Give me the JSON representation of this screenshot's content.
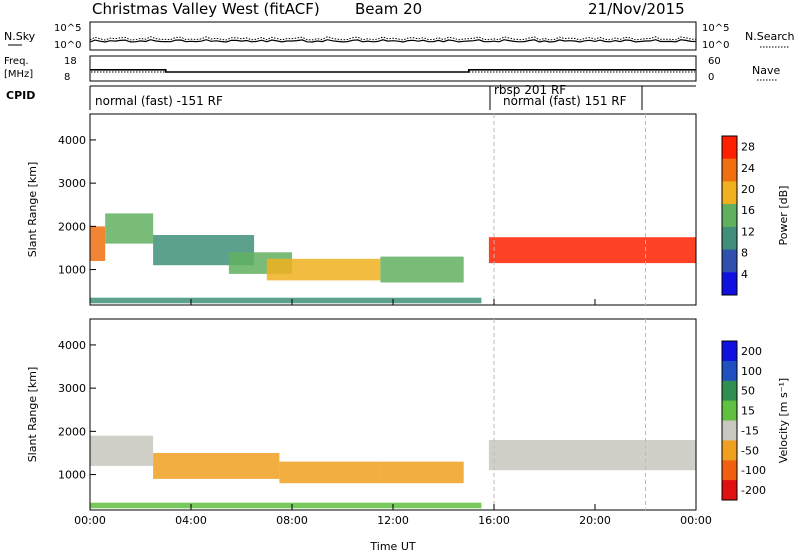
{
  "header": {
    "radar": "Christmas Valley West (fitACF)",
    "beam": "Beam 20",
    "date": "21/Nov/2015"
  },
  "strips": {
    "nsky_label": "N.Sky",
    "nsky_ticks": [
      "10^5",
      "10^0"
    ],
    "nsearch_label": "N.Search",
    "nsearch_ticks": [
      "10^5",
      "10^0"
    ],
    "freq_label_1": "Freq.",
    "freq_label_2": "[MHz]",
    "freq_ticks": [
      "18",
      "8"
    ],
    "nave_label": "Nave",
    "nave_ticks": [
      "60",
      "0"
    ],
    "cpid_label": "CPID",
    "cpid_segments": [
      "normal (fast) -151 RF",
      "rbsp 201 RF",
      "normal (fast) 151 RF"
    ]
  },
  "chart_data": [
    {
      "type": "heatmap",
      "panel": "power",
      "ylabel": "Slant Range [km]",
      "xlabel": "",
      "x_ticks": [
        "00:00",
        "04:00",
        "08:00",
        "12:00",
        "16:00",
        "20:00",
        "00:00"
      ],
      "x_range_hours": [
        0,
        24
      ],
      "y_ticks": [
        1000,
        2000,
        3000,
        4000
      ],
      "y_range_km": [
        180,
        4600
      ],
      "colorbar": {
        "label": "Power [dB]",
        "ticks": [
          4,
          8,
          12,
          16,
          20,
          24,
          28
        ],
        "range": [
          0,
          30
        ],
        "colors": [
          "#1010e0",
          "#3050b0",
          "#3f8f7a",
          "#60b060",
          "#f0b020",
          "#f07010",
          "#ff2000"
        ]
      },
      "regions": [
        {
          "t0": 0.0,
          "t1": 0.6,
          "r0": 1200,
          "r1": 2000,
          "value": 22
        },
        {
          "t0": 0.6,
          "t1": 2.5,
          "r0": 1600,
          "r1": 2300,
          "value": 13
        },
        {
          "t0": 2.5,
          "t1": 6.5,
          "r0": 1100,
          "r1": 1800,
          "value": 11
        },
        {
          "t0": 5.5,
          "t1": 8.0,
          "r0": 900,
          "r1": 1400,
          "value": 14
        },
        {
          "t0": 7.0,
          "t1": 11.5,
          "r0": 750,
          "r1": 1250,
          "value": 19
        },
        {
          "t0": 11.5,
          "t1": 14.8,
          "r0": 700,
          "r1": 1300,
          "value": 15
        },
        {
          "t0": 15.8,
          "t1": 24.0,
          "r0": 1150,
          "r1": 1750,
          "value": 27
        },
        {
          "t0": 0.0,
          "t1": 15.5,
          "r0": 220,
          "r1": 350,
          "value": 9
        }
      ]
    },
    {
      "type": "heatmap",
      "panel": "velocity",
      "ylabel": "Slant Range [km]",
      "xlabel": "Time UT",
      "x_ticks": [
        "00:00",
        "04:00",
        "08:00",
        "12:00",
        "16:00",
        "20:00",
        "00:00"
      ],
      "x_range_hours": [
        0,
        24
      ],
      "y_ticks": [
        1000,
        2000,
        3000,
        4000
      ],
      "y_range_km": [
        180,
        4600
      ],
      "colorbar": {
        "label": "Velocity [m s⁻¹]",
        "ticks": [
          200,
          100,
          50,
          15,
          -15,
          -50,
          -100,
          -200
        ],
        "colors": [
          "#1010e0",
          "#2050c0",
          "#2f8f50",
          "#60c040",
          "#c8c8c0",
          "#f0a020",
          "#f06010",
          "#e01010"
        ]
      },
      "regions": [
        {
          "t0": 0.0,
          "t1": 2.5,
          "r0": 1200,
          "r1": 1900,
          "value": 0
        },
        {
          "t0": 2.5,
          "t1": 7.5,
          "r0": 900,
          "r1": 1500,
          "value": -30
        },
        {
          "t0": 7.5,
          "t1": 11.5,
          "r0": 800,
          "r1": 1300,
          "value": -30
        },
        {
          "t0": 11.5,
          "t1": 14.8,
          "r0": 800,
          "r1": 1300,
          "value": -30
        },
        {
          "t0": 15.8,
          "t1": 24.0,
          "r0": 1100,
          "r1": 1800,
          "value": 0
        },
        {
          "t0": 0.0,
          "t1": 15.5,
          "r0": 220,
          "r1": 350,
          "value": 20
        }
      ]
    }
  ]
}
